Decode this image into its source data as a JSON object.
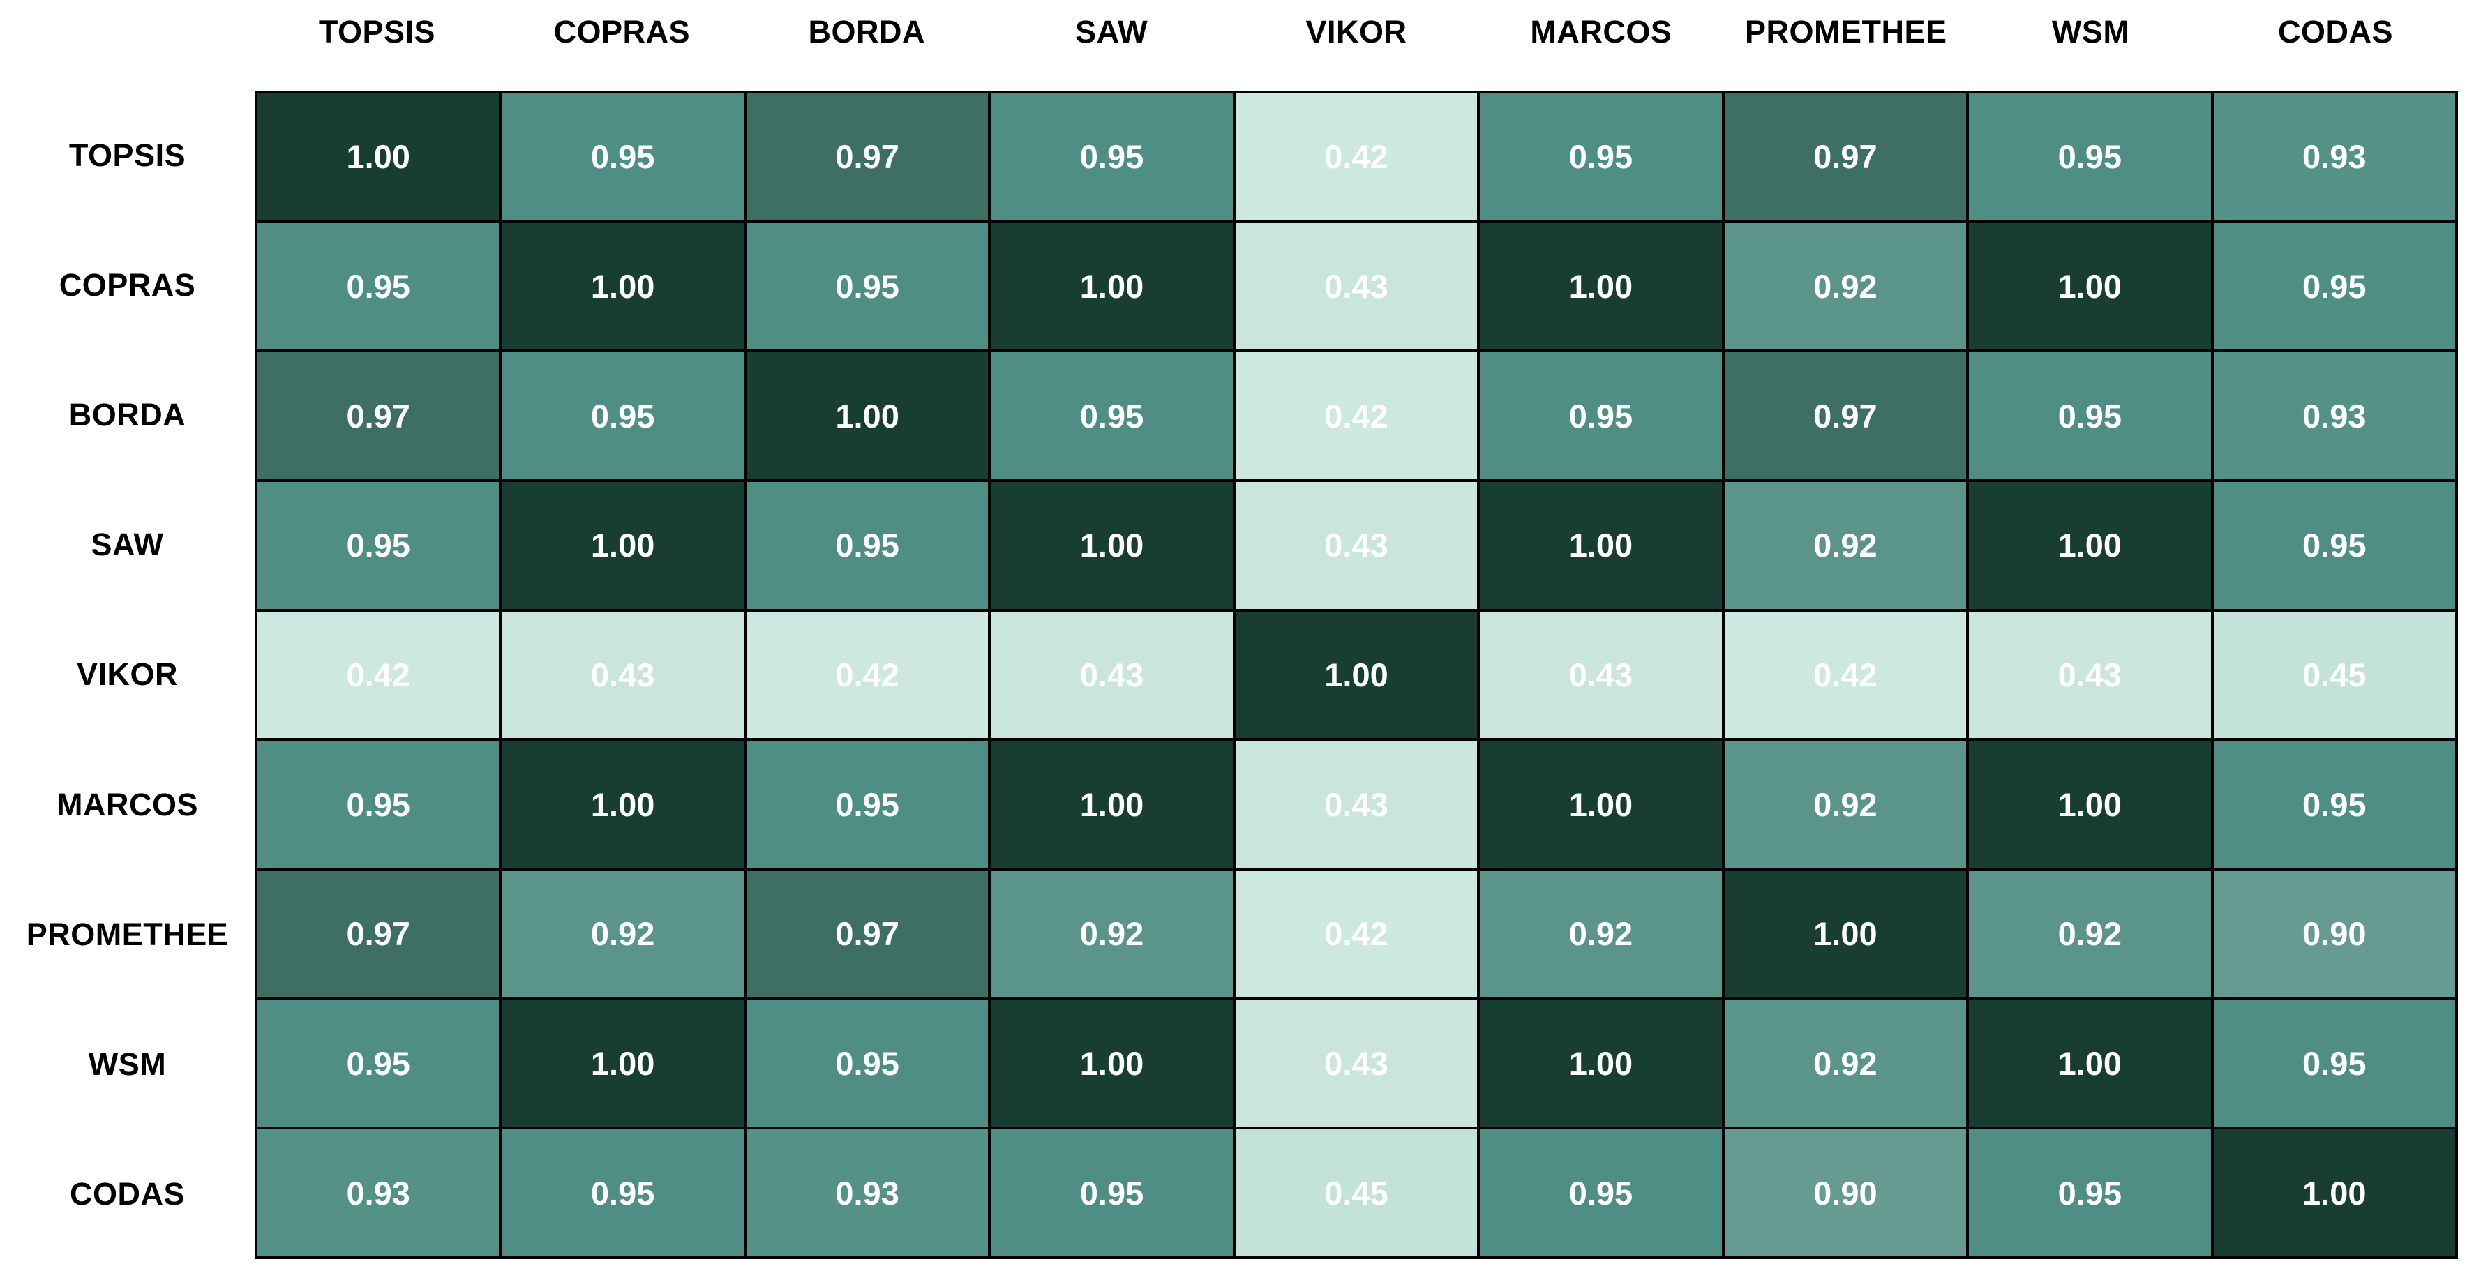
{
  "chart_data": {
    "type": "heatmap",
    "title": "",
    "xlabel": "",
    "ylabel": "",
    "col_headers": [
      "TOPSIS",
      "COPRAS",
      "BORDA",
      "SAW",
      "VIKOR",
      "MARCOS",
      "PROMETHEE",
      "WSM",
      "CODAS"
    ],
    "row_headers": [
      "TOPSIS",
      "COPRAS",
      "BORDA",
      "SAW",
      "VIKOR",
      "MARCOS",
      "PROMETHEE",
      "WSM",
      "CODAS"
    ],
    "matrix": [
      [
        1.0,
        0.95,
        0.97,
        0.95,
        0.42,
        0.95,
        0.97,
        0.95,
        0.93
      ],
      [
        0.95,
        1.0,
        0.95,
        1.0,
        0.43,
        1.0,
        0.92,
        1.0,
        0.95
      ],
      [
        0.97,
        0.95,
        1.0,
        0.95,
        0.42,
        0.95,
        0.97,
        0.95,
        0.93
      ],
      [
        0.95,
        1.0,
        0.95,
        1.0,
        0.43,
        1.0,
        0.92,
        1.0,
        0.95
      ],
      [
        0.42,
        0.43,
        0.42,
        0.43,
        1.0,
        0.43,
        0.42,
        0.43,
        0.45
      ],
      [
        0.95,
        1.0,
        0.95,
        1.0,
        0.43,
        1.0,
        0.92,
        1.0,
        0.95
      ],
      [
        0.97,
        0.92,
        0.97,
        0.92,
        0.42,
        0.92,
        1.0,
        0.92,
        0.9
      ],
      [
        0.95,
        1.0,
        0.95,
        1.0,
        0.43,
        1.0,
        0.92,
        1.0,
        0.95
      ],
      [
        0.93,
        0.95,
        0.93,
        0.95,
        0.45,
        0.95,
        0.9,
        0.95,
        1.0
      ]
    ],
    "value_format": "2dp",
    "grid": true,
    "legend": false,
    "colors": {
      "scale_low": "#CDE7E1",
      "scale_high": "#183D33",
      "value_colors": {
        "1.00": "#183D33",
        "0.97": "#3D6F64",
        "0.95": "#4E8E84",
        "0.93": "#549186",
        "0.92": "#5A948A",
        "0.90": "#659B91",
        "0.45": "#C3E2DA",
        "0.43": "#C9E5DE",
        "0.42": "#CDE7E1"
      },
      "cell_text": "#FFFFFF",
      "label_text": "#000000",
      "grid_border": "#000000",
      "background": "#FFFFFF"
    }
  }
}
